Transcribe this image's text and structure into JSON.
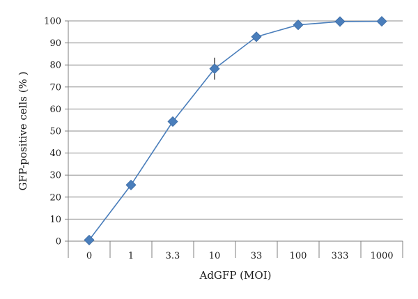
{
  "chart_data": {
    "type": "line",
    "xlabel": "AdGFP (MOI)",
    "ylabel": "GFP-positive cells (% )",
    "categories": [
      "0",
      "1",
      "3.3",
      "10",
      "33",
      "100",
      "333",
      "1000"
    ],
    "series": [
      {
        "values": [
          0.5,
          25.5,
          54.3,
          78.3,
          92.8,
          98.2,
          99.7,
          99.8
        ],
        "error": [
          0,
          0,
          0,
          5,
          0,
          1.5,
          0,
          0
        ],
        "color": "#4a7ebb",
        "marker": "diamond"
      }
    ],
    "ylim": [
      0,
      100
    ],
    "yticks": [
      "0",
      "10",
      "20",
      "30",
      "40",
      "50",
      "60",
      "70",
      "80",
      "90",
      "100"
    ],
    "grid": "horizontal",
    "legend": "none"
  }
}
